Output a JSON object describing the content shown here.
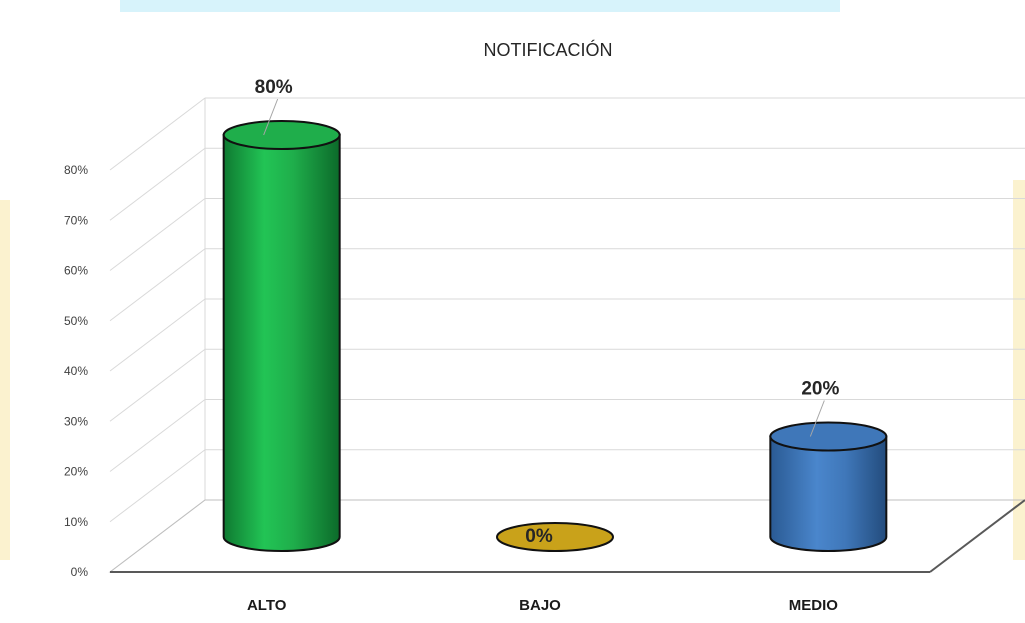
{
  "chart_data": {
    "type": "bar",
    "title": "NOTIFICACIÓN",
    "categories": [
      "ALTO",
      "BAJO",
      "MEDIO"
    ],
    "values": [
      80,
      0,
      20
    ],
    "data_labels": [
      "80%",
      "0%",
      "20%"
    ],
    "ylim": [
      0,
      80
    ],
    "yticks": [
      "0%",
      "10%",
      "20%",
      "30%",
      "40%",
      "50%",
      "60%",
      "70%",
      "80%"
    ],
    "colors": [
      "#1fae4b",
      "#c9a21a",
      "#3f77b9"
    ],
    "grid": true,
    "legend": "none",
    "style": "3d-cylinder"
  }
}
